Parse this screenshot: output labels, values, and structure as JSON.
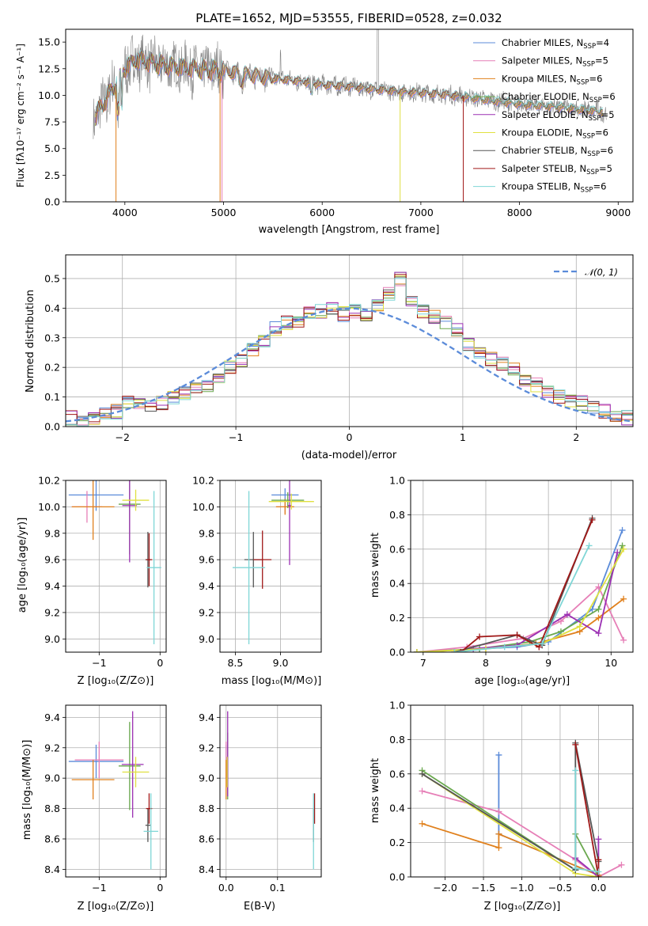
{
  "title": "PLATE=1652, MJD=53555, FIBERID=0528, z=0.032",
  "colors": {
    "Chabrier MILES": "#5b8bd9",
    "Salpeter MILES": "#e67fb7",
    "Kroupa MILES": "#e0801c",
    "Chabrier ELODIE": "#6aa84f",
    "Salpeter ELODIE": "#9b30b3",
    "Kroupa ELODIE": "#e0e040",
    "Chabrier STELIB": "#555555",
    "Salpeter STELIB": "#a01818",
    "Kroupa STELIB": "#7fd6d6",
    "data": "#808080",
    "normal": "#5b8bd9"
  },
  "chart_data": [
    {
      "id": "spectrum",
      "type": "line",
      "xlabel": "wavelength [Angstrom, rest frame]",
      "ylabel": "Flux [fλ10⁻¹⁷ erg cm⁻² s⁻¹ A⁻¹]",
      "xlim": [
        3400,
        9150
      ],
      "ylim": [
        0,
        16.2
      ],
      "xticks": [
        "4000",
        "5000",
        "6000",
        "7000",
        "8000",
        "9000"
      ],
      "yticks": [
        "0.0",
        "2.5",
        "5.0",
        "7.5",
        "10.0",
        "12.5",
        "15.0"
      ],
      "grid": false,
      "legend_position": "top-right",
      "legend": [
        {
          "name": "Chabrier MILES, N",
          "sub": "SSP",
          "tail": "=4"
        },
        {
          "name": "Salpeter MILES, N",
          "sub": "SSP",
          "tail": "=5"
        },
        {
          "name": "Kroupa MILES, N",
          "sub": "SSP",
          "tail": "=6"
        },
        {
          "name": "Chabrier ELODIE, N",
          "sub": "SSP",
          "tail": "=6"
        },
        {
          "name": "Salpeter ELODIE, N",
          "sub": "SSP",
          "tail": "=5"
        },
        {
          "name": "Kroupa ELODIE, N",
          "sub": "SSP",
          "tail": "=6"
        },
        {
          "name": "Chabrier STELIB, N",
          "sub": "SSP",
          "tail": "=6"
        },
        {
          "name": "Salpeter STELIB, N",
          "sub": "SSP",
          "tail": "=5"
        },
        {
          "name": "Kroupa STELIB, N",
          "sub": "SSP",
          "tail": "=6"
        }
      ],
      "continuum": {
        "x": [
          3700,
          3800,
          3900,
          4000,
          4100,
          4200,
          4400,
          4600,
          4800,
          5000,
          5200,
          5500,
          5800,
          6000,
          6300,
          6600,
          6900,
          7200,
          7500,
          7800,
          8100,
          8400,
          8700,
          8900
        ],
        "y": [
          8.0,
          9.5,
          11.0,
          12.5,
          13.3,
          13.2,
          12.8,
          12.6,
          12.4,
          12.3,
          12.0,
          11.6,
          11.3,
          11.0,
          10.8,
          10.5,
          10.3,
          10.1,
          9.8,
          9.4,
          9.1,
          8.9,
          8.6,
          8.4
        ]
      }
    },
    {
      "id": "residuals",
      "type": "histogram",
      "xlabel": "(data-model)/error",
      "ylabel": "Normed distribution",
      "xlim": [
        -2.5,
        2.5
      ],
      "ylim": [
        0,
        0.58
      ],
      "xticks": [
        "−2",
        "−1",
        "0",
        "1",
        "2"
      ],
      "yticks": [
        "0.0",
        "0.1",
        "0.2",
        "0.3",
        "0.4",
        "0.5"
      ],
      "grid": true,
      "legend": "𝒩(0, 1)",
      "legend_position": "top-right",
      "bin_width": 0.1,
      "bin_start": -2.5,
      "base_values": [
        0.03,
        0.02,
        0.03,
        0.04,
        0.05,
        0.08,
        0.07,
        0.07,
        0.08,
        0.1,
        0.11,
        0.13,
        0.14,
        0.17,
        0.2,
        0.22,
        0.26,
        0.29,
        0.33,
        0.35,
        0.36,
        0.38,
        0.39,
        0.4,
        0.38,
        0.39,
        0.38,
        0.41,
        0.45,
        0.5,
        0.42,
        0.39,
        0.37,
        0.35,
        0.33,
        0.28,
        0.25,
        0.23,
        0.21,
        0.19,
        0.16,
        0.14,
        0.12,
        0.1,
        0.09,
        0.08,
        0.06,
        0.05,
        0.04,
        0.03
      ]
    },
    {
      "id": "age-vs-Z",
      "type": "errorbar",
      "xlabel": "Z [log₁₀(Z/Z⊙)]",
      "ylabel": "age  [log₁₀(age/yr)]",
      "xlim": [
        -1.55,
        0.1
      ],
      "ylim": [
        8.9,
        10.2
      ],
      "xticks": [
        "−1",
        "0"
      ],
      "yticks": [
        "9.0",
        "9.2",
        "9.4",
        "9.6",
        "9.8",
        "10.0",
        "10.2"
      ],
      "points": [
        {
          "model": "Chabrier MILES",
          "x": -1.05,
          "xerr": 0.45,
          "y": 10.09,
          "yerr": 0.12
        },
        {
          "model": "Salpeter MILES",
          "x": -1.2,
          "xerr": 0.25,
          "y": 10.0,
          "yerr": 0.12
        },
        {
          "model": "Kroupa MILES",
          "x": -1.1,
          "xerr": 0.35,
          "y": 10.0,
          "yerr": 0.25
        },
        {
          "model": "Chabrier ELODIE",
          "x": -0.5,
          "xerr": 0.18,
          "y": 10.02,
          "yerr": 0.38
        },
        {
          "model": "Salpeter ELODIE",
          "x": -0.5,
          "xerr": 0.12,
          "y": 10.01,
          "yerr": 0.43
        },
        {
          "model": "Kroupa ELODIE",
          "x": -0.4,
          "xerr": 0.22,
          "y": 10.05,
          "yerr": 0.08
        },
        {
          "model": "Chabrier STELIB",
          "x": -0.2,
          "xerr": 0.04,
          "y": 9.6,
          "yerr": 0.21
        },
        {
          "model": "Salpeter STELIB",
          "x": -0.18,
          "xerr": 0.05,
          "y": 9.6,
          "yerr": 0.2
        },
        {
          "model": "Kroupa STELIB",
          "x": -0.1,
          "xerr": 0.12,
          "y": 9.54,
          "yerr": 0.58
        }
      ]
    },
    {
      "id": "age-vs-mass",
      "type": "errorbar",
      "xlabel": "mass [log₁₀(M/M⊙)]",
      "ylabel": "",
      "xlim": [
        8.33,
        9.45
      ],
      "ylim": [
        8.9,
        10.2
      ],
      "xticks": [
        "8.5",
        "9.0"
      ],
      "yticks": [
        "9.0",
        "9.2",
        "9.4",
        "9.6",
        "9.8",
        "10.0",
        "10.2"
      ],
      "points": [
        {
          "model": "Chabrier MILES",
          "x": 9.05,
          "xerr": 0.15,
          "y": 10.09,
          "yerr": 0.05
        },
        {
          "model": "Salpeter MILES",
          "x": 9.05,
          "xerr": 0.1,
          "y": 10.0,
          "yerr": 0.05
        },
        {
          "model": "Kroupa MILES",
          "x": 9.05,
          "xerr": 0.1,
          "y": 10.0,
          "yerr": 0.06
        },
        {
          "model": "Chabrier ELODIE",
          "x": 9.08,
          "xerr": 0.18,
          "y": 10.05,
          "yerr": 0.06
        },
        {
          "model": "Salpeter ELODIE",
          "x": 9.1,
          "xerr": 0.02,
          "y": 10.01,
          "yerr": 0.45
        },
        {
          "model": "Kroupa ELODIE",
          "x": 9.12,
          "xerr": 0.25,
          "y": 10.04,
          "yerr": 0.06
        },
        {
          "model": "Chabrier STELIB",
          "x": 8.7,
          "xerr": 0.1,
          "y": 9.6,
          "yerr": 0.21
        },
        {
          "model": "Salpeter STELIB",
          "x": 8.8,
          "xerr": 0.1,
          "y": 9.6,
          "yerr": 0.22
        },
        {
          "model": "Kroupa STELIB",
          "x": 8.65,
          "xerr": 0.18,
          "y": 9.54,
          "yerr": 0.58
        }
      ]
    },
    {
      "id": "mass-weight-vs-age",
      "type": "line",
      "xlabel": "age  [log₁₀(age/yr)]",
      "ylabel": "mass weight",
      "xlim": [
        6.8,
        10.35
      ],
      "ylim": [
        0,
        1.0
      ],
      "xticks": [
        "7",
        "8",
        "9",
        "10"
      ],
      "yticks": [
        "0.0",
        "0.2",
        "0.4",
        "0.6",
        "0.8",
        "1.0"
      ],
      "series": [
        {
          "model": "Chabrier MILES",
          "x": [
            6.9,
            7.9,
            8.5,
            9.0,
            9.7,
            10.18
          ],
          "y": [
            0.0,
            0.02,
            0.03,
            0.06,
            0.25,
            0.71
          ]
        },
        {
          "model": "Salpeter MILES",
          "x": [
            6.9,
            7.7,
            8.6,
            9.2,
            9.8,
            10.2
          ],
          "y": [
            0.0,
            0.03,
            0.08,
            0.18,
            0.38,
            0.07
          ]
        },
        {
          "model": "Kroupa MILES",
          "x": [
            6.9,
            8.0,
            8.8,
            9.5,
            9.8,
            10.2
          ],
          "y": [
            0.0,
            0.02,
            0.05,
            0.12,
            0.2,
            0.31
          ]
        },
        {
          "model": "Chabrier ELODIE",
          "x": [
            6.9,
            7.9,
            8.7,
            9.2,
            9.8,
            10.18
          ],
          "y": [
            0.0,
            0.02,
            0.06,
            0.12,
            0.25,
            0.62
          ]
        },
        {
          "model": "Salpeter ELODIE",
          "x": [
            7.8,
            8.5,
            9.3,
            9.8,
            10.1
          ],
          "y": [
            0.02,
            0.04,
            0.22,
            0.11,
            0.58
          ]
        },
        {
          "model": "Kroupa ELODIE",
          "x": [
            6.9,
            8.0,
            8.9,
            9.5,
            10.2
          ],
          "y": [
            0.0,
            0.02,
            0.05,
            0.15,
            0.6
          ]
        },
        {
          "model": "Chabrier STELIB",
          "x": [
            7.5,
            8.5,
            8.9,
            9.7
          ],
          "y": [
            0.0,
            0.1,
            0.04,
            0.78
          ]
        },
        {
          "model": "Salpeter STELIB",
          "x": [
            7.6,
            7.9,
            8.5,
            8.85,
            9.7
          ],
          "y": [
            0.0,
            0.09,
            0.1,
            0.03,
            0.77
          ]
        },
        {
          "model": "Kroupa STELIB",
          "x": [
            7.5,
            8.3,
            8.9,
            9.65
          ],
          "y": [
            0.0,
            0.03,
            0.05,
            0.62
          ]
        }
      ]
    },
    {
      "id": "mass-vs-Z",
      "type": "errorbar",
      "xlabel": "Z [log₁₀(Z/Z⊙)]",
      "ylabel": "mass [log₁₀(M/M⊙)]",
      "xlim": [
        -1.55,
        0.1
      ],
      "ylim": [
        8.35,
        9.48
      ],
      "xticks": [
        "−1",
        "0"
      ],
      "yticks": [
        "8.4",
        "8.6",
        "8.8",
        "9.0",
        "9.2",
        "9.4"
      ],
      "points": [
        {
          "model": "Chabrier MILES",
          "x": -1.05,
          "xerr": 0.45,
          "y": 9.11,
          "yerr": 0.11
        },
        {
          "model": "Salpeter MILES",
          "x": -1.0,
          "xerr": 0.4,
          "y": 9.12,
          "yerr": 0.12
        },
        {
          "model": "Kroupa MILES",
          "x": -1.1,
          "xerr": 0.35,
          "y": 8.99,
          "yerr": 0.13
        },
        {
          "model": "Chabrier ELODIE",
          "x": -0.5,
          "xerr": 0.18,
          "y": 9.08,
          "yerr": 0.29
        },
        {
          "model": "Salpeter ELODIE",
          "x": -0.45,
          "xerr": 0.18,
          "y": 9.09,
          "yerr": 0.35
        },
        {
          "model": "Kroupa ELODIE",
          "x": -0.4,
          "xerr": 0.22,
          "y": 9.04,
          "yerr": 0.1
        },
        {
          "model": "Chabrier STELIB",
          "x": -0.2,
          "xerr": 0.04,
          "y": 8.69,
          "yerr": 0.11
        },
        {
          "model": "Salpeter STELIB",
          "x": -0.18,
          "xerr": 0.05,
          "y": 8.8,
          "yerr": 0.1
        },
        {
          "model": "Kroupa STELIB",
          "x": -0.15,
          "xerr": 0.12,
          "y": 8.65,
          "yerr": 0.25
        }
      ]
    },
    {
      "id": "mass-vs-EBV",
      "type": "errorbar",
      "xlabel": "E(B-V)",
      "ylabel": "",
      "xlim": [
        -0.012,
        0.185
      ],
      "ylim": [
        8.35,
        9.48
      ],
      "xticks": [
        "0.0",
        "0.1"
      ],
      "yticks": [
        "8.4",
        "8.6",
        "8.8",
        "9.0",
        "9.2",
        "9.4"
      ],
      "points": [
        {
          "model": "Chabrier MILES",
          "x": 0.0,
          "xerr": 0.0,
          "y": 9.11,
          "yerr": 0.11
        },
        {
          "model": "Salpeter MILES",
          "x": 0.0,
          "xerr": 0.0,
          "y": 9.12,
          "yerr": 0.12
        },
        {
          "model": "Kroupa MILES",
          "x": 0.0,
          "xerr": 0.0,
          "y": 8.99,
          "yerr": 0.13
        },
        {
          "model": "Chabrier ELODIE",
          "x": 0.003,
          "xerr": 0.0,
          "y": 9.08,
          "yerr": 0.22
        },
        {
          "model": "Salpeter ELODIE",
          "x": 0.003,
          "xerr": 0.0,
          "y": 9.16,
          "yerr": 0.28
        },
        {
          "model": "Kroupa ELODIE",
          "x": 0.002,
          "xerr": 0.0,
          "y": 9.04,
          "yerr": 0.1
        },
        {
          "model": "Chabrier STELIB",
          "x": 0.17,
          "xerr": 0.0,
          "y": 8.69,
          "yerr": 0.11
        },
        {
          "model": "Salpeter STELIB",
          "x": 0.172,
          "xerr": 0.0,
          "y": 8.8,
          "yerr": 0.1
        },
        {
          "model": "Kroupa STELIB",
          "x": 0.17,
          "xerr": 0.0,
          "y": 8.65,
          "yerr": 0.25
        }
      ]
    },
    {
      "id": "mass-weight-vs-Z",
      "type": "line",
      "xlabel": "Z [log₁₀(Z/Z⊙)]",
      "ylabel": "mass weight",
      "xlim": [
        -2.45,
        0.45
      ],
      "ylim": [
        0,
        1.0
      ],
      "xticks": [
        "−2.0",
        "−1.5",
        "−1.0",
        "−0.5",
        "0.0"
      ],
      "yticks": [
        "0.0",
        "0.2",
        "0.4",
        "0.6",
        "0.8",
        "1.0"
      ],
      "series": [
        {
          "model": "Chabrier MILES",
          "x": [
            -1.3,
            -1.3,
            0.0
          ],
          "y": [
            0.71,
            0.25,
            0.01
          ]
        },
        {
          "model": "Salpeter MILES",
          "x": [
            -2.3,
            -1.3,
            -0.3,
            0.0,
            0.3
          ],
          "y": [
            0.5,
            0.38,
            0.1,
            0.0,
            0.07
          ]
        },
        {
          "model": "Kroupa MILES",
          "x": [
            -2.3,
            -1.3,
            -1.3,
            0.0
          ],
          "y": [
            0.31,
            0.17,
            0.25,
            0.01
          ]
        },
        {
          "model": "Chabrier ELODIE",
          "x": [
            -2.3,
            -0.3,
            -0.3,
            0.0
          ],
          "y": [
            0.62,
            0.04,
            0.25,
            0.0
          ]
        },
        {
          "model": "Salpeter ELODIE",
          "x": [
            -0.3,
            0.0,
            0.0
          ],
          "y": [
            0.11,
            0.0,
            0.22
          ]
        },
        {
          "model": "Kroupa ELODIE",
          "x": [
            -2.3,
            -0.3,
            0.0
          ],
          "y": [
            0.6,
            0.02,
            0.0
          ]
        },
        {
          "model": "Chabrier STELIB",
          "x": [
            -2.3,
            -0.3,
            -0.3,
            0.0
          ],
          "y": [
            0.6,
            0.04,
            0.78,
            0.09
          ]
        },
        {
          "model": "Salpeter STELIB",
          "x": [
            -0.3,
            0.0,
            0.0
          ],
          "y": [
            0.77,
            0.0,
            0.1
          ]
        },
        {
          "model": "Kroupa STELIB",
          "x": [
            -0.3,
            -0.3,
            0.0
          ],
          "y": [
            0.62,
            0.05,
            0.03
          ]
        }
      ]
    }
  ]
}
